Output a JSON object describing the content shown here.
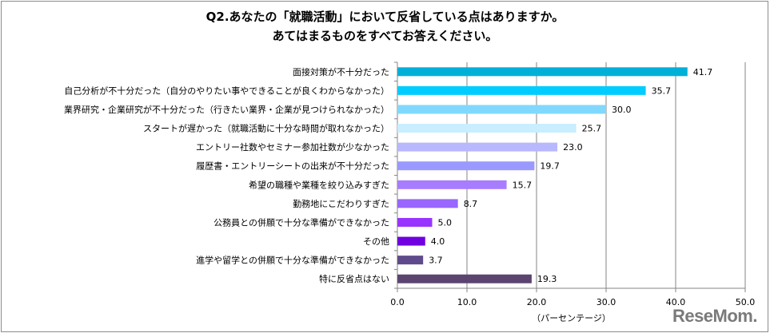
{
  "chart_data": {
    "type": "bar",
    "orientation": "horizontal",
    "title_line1": "Q2.あなたの「就職活動」において反省している点はありますか。",
    "title_line2": "あてはまるものをすべてお答えください。",
    "xlabel": "（パーセンテージ）",
    "xlim": [
      0,
      50
    ],
    "xticks": [
      "0.0",
      "10.0",
      "20.0",
      "30.0",
      "40.0",
      "50.0"
    ],
    "grid": true,
    "categories": [
      "面接対策が不十分だった",
      "自己分析が不十分だった（自分のやりたい事やできることが良くわからなかった）",
      "業界研究・企業研究が不十分だった（行きたい業界・企業が見つけられなかった）",
      "スタートが遅かった（就職活動に十分な時間が取れなかった）",
      "エントリー社数やセミナー参加社数が少なかった",
      "履歴書・エントリーシートの出来が不十分だった",
      "希望の職種や業種を絞り込みすぎた",
      "勤務地にこだわりすぎた",
      "公務員との併願で十分な準備ができなかった",
      "その他",
      "進学や留学との併願で十分な準備ができなかった",
      "特に反省点はない"
    ],
    "values": [
      41.7,
      35.7,
      30.0,
      25.7,
      23.0,
      19.7,
      15.7,
      8.7,
      5.0,
      4.0,
      3.7,
      19.3
    ],
    "value_labels": [
      "41.7",
      "35.7",
      "30.0",
      "25.7",
      "23.0",
      "19.7",
      "15.7",
      "8.7",
      "5.0",
      "4.0",
      "3.7",
      "19.3"
    ],
    "colors": [
      "#00B0D8",
      "#00CCFF",
      "#80D8FF",
      "#C8EEFF",
      "#B8B8FF",
      "#9999FF",
      "#A87CFF",
      "#9966FF",
      "#9933FF",
      "#7000E0",
      "#5F4B8B",
      "#5B4570"
    ]
  },
  "logo": "ReseMom."
}
